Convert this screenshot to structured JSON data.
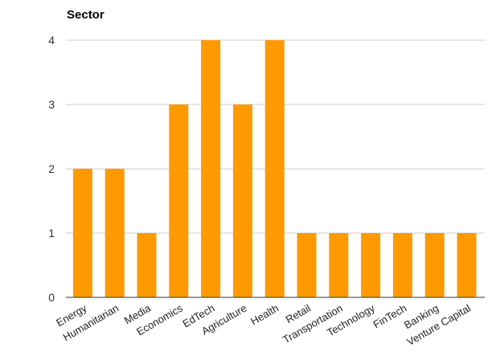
{
  "chart_data": {
    "type": "bar",
    "title": "Sector",
    "xlabel": "",
    "ylabel": "",
    "categories": [
      "Energy",
      "Humanitarian",
      "Media",
      "Economics",
      "EdTech",
      "Agriculture",
      "Health",
      "Retail",
      "Transportation",
      "Technology",
      "FinTech",
      "Banking",
      "Venture Capital"
    ],
    "values": [
      2,
      2,
      1,
      3,
      4,
      3,
      4,
      1,
      1,
      1,
      1,
      1,
      1
    ],
    "ylim": [
      0,
      4
    ],
    "yticks": [
      0,
      1,
      2,
      3,
      4
    ],
    "grid": true,
    "legend": "none",
    "bar_color": "#ff9900",
    "grid_color": "#cccccc"
  }
}
